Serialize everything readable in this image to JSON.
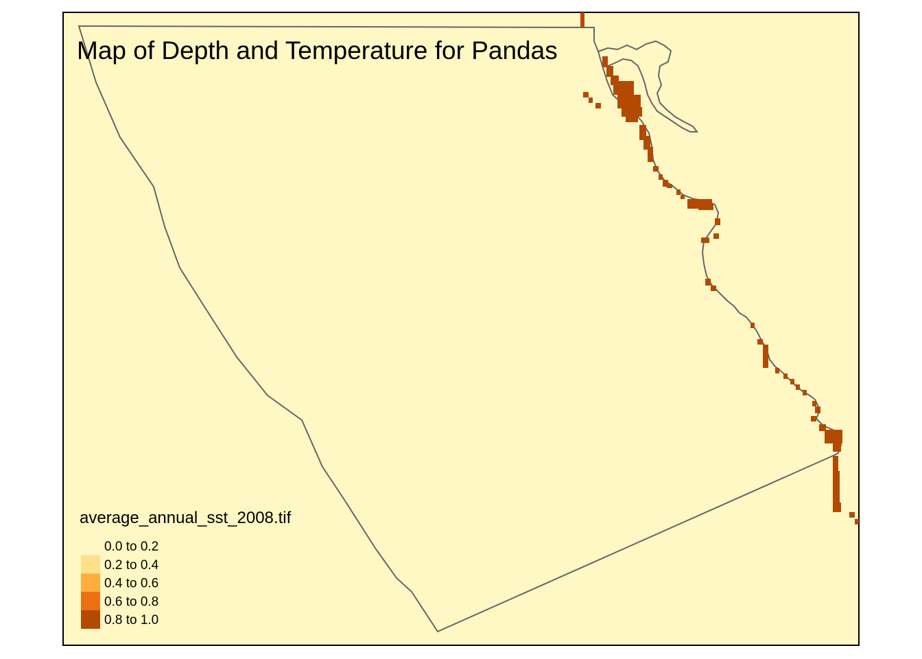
{
  "map": {
    "title": "Map of Depth and Temperature for Pandas",
    "background_color": "#FFF7C4",
    "frame_color": "#000000",
    "outline_color": "#666666",
    "raster_color": "#B34A04"
  },
  "legend": {
    "title": "average_annual_sst_2008.tif",
    "entries": [
      {
        "label": "0.0 to 0.2",
        "color": "#FFF7C4"
      },
      {
        "label": "0.2 to 0.4",
        "color": "#FEE08B"
      },
      {
        "label": "0.4 to 0.6",
        "color": "#FDAE3F"
      },
      {
        "label": "0.6 to 0.8",
        "color": "#EC6F14"
      },
      {
        "label": "0.8 to 1.0",
        "color": "#B34A04"
      }
    ]
  }
}
